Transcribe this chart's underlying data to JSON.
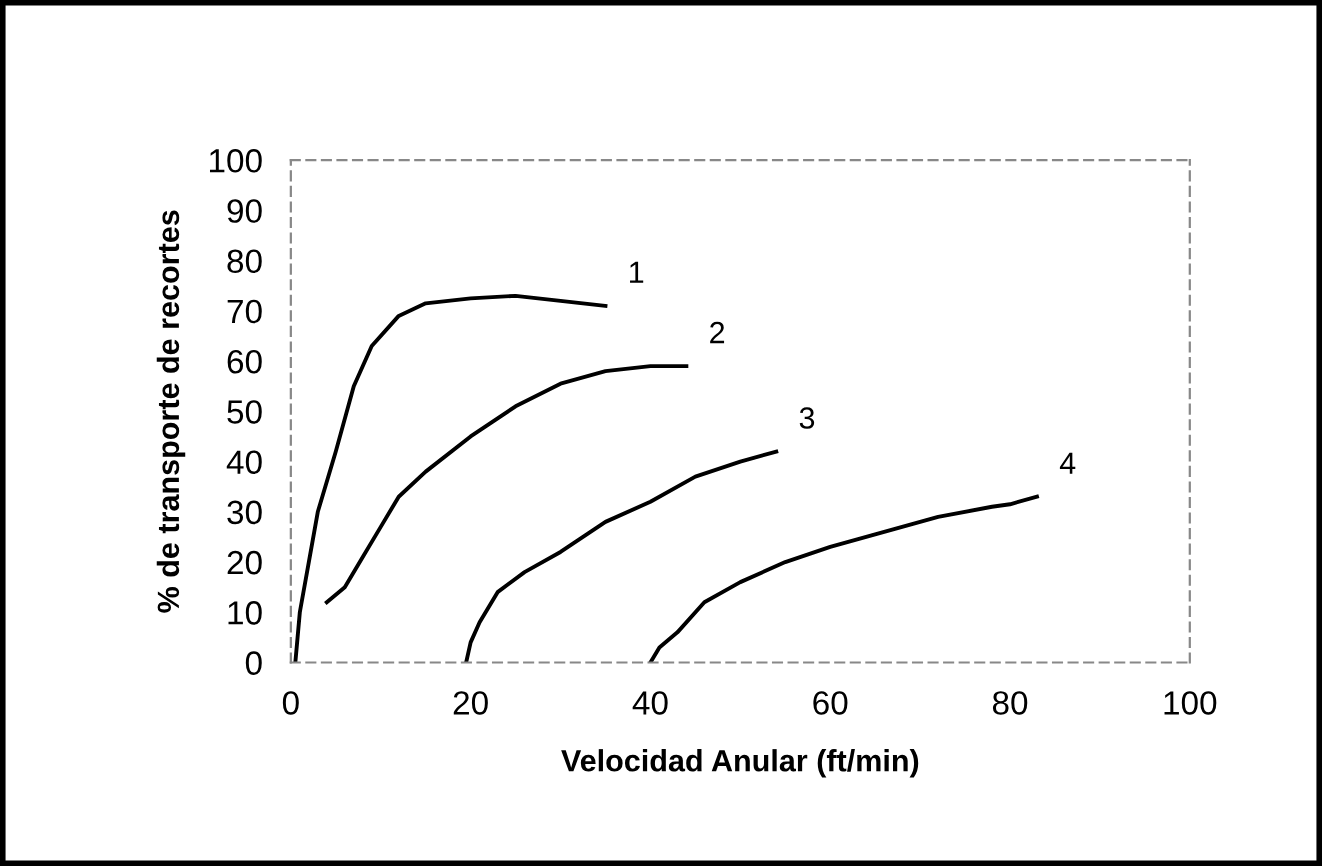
{
  "chart_data": {
    "type": "line",
    "xlabel": "Velocidad Anular (ft/min)",
    "ylabel": "% de transporte de recortes",
    "xlim": [
      0,
      100
    ],
    "ylim": [
      0,
      100
    ],
    "xticks": [
      0,
      20,
      40,
      60,
      80,
      100
    ],
    "yticks": [
      0,
      10,
      20,
      30,
      40,
      50,
      60,
      70,
      80,
      90,
      100
    ],
    "grid": false,
    "marker": "none",
    "line_style": "solid",
    "series": [
      {
        "name": "1",
        "color": "#000000",
        "x": [
          0.5,
          1,
          2,
          3,
          5,
          7,
          9,
          12,
          15,
          20,
          25,
          30,
          35
        ],
        "values": [
          0,
          10,
          20,
          30,
          42,
          55,
          63,
          69,
          71.5,
          72.5,
          73,
          72,
          71
        ]
      },
      {
        "name": "2",
        "color": "#000000",
        "x": [
          4,
          6,
          8,
          10,
          12,
          15,
          20,
          25,
          30,
          35,
          40,
          44
        ],
        "values": [
          12,
          15,
          21,
          27,
          33,
          38,
          45,
          51,
          55.5,
          58,
          59,
          59
        ]
      },
      {
        "name": "3",
        "color": "#000000",
        "x": [
          19.5,
          20,
          21,
          23,
          26,
          30,
          35,
          40,
          45,
          50,
          54
        ],
        "values": [
          0,
          4,
          8,
          14,
          18,
          22,
          28,
          32,
          37,
          40,
          42
        ]
      },
      {
        "name": "4",
        "color": "#000000",
        "x": [
          40,
          41,
          43,
          46,
          50,
          55,
          60,
          66,
          72,
          78,
          80,
          83
        ],
        "values": [
          0,
          3,
          6,
          12,
          16,
          20,
          23,
          26,
          29,
          31,
          31.5,
          33
        ]
      }
    ]
  }
}
